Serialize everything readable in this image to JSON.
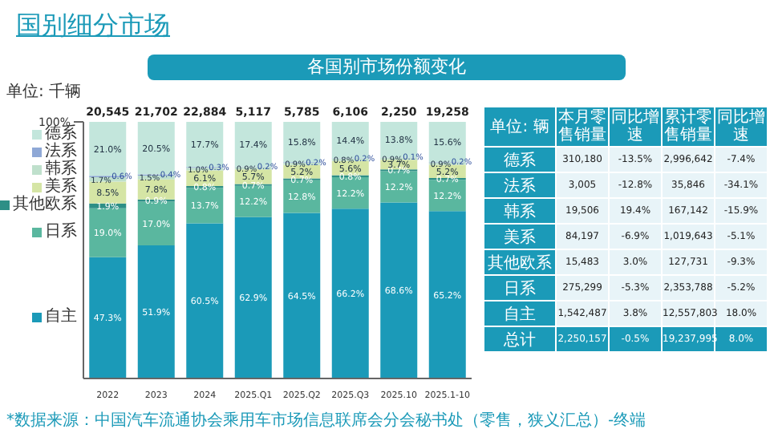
{
  "chart_data": [
    {
      "type": "bar",
      "title": "国别细分市场",
      "subtitle": "各国别市场份额变化",
      "stacked": true,
      "categories": [
        "2022",
        "2023",
        "2024",
        "2025.Q1",
        "2025.Q2",
        "2025.Q3",
        "2025.10",
        "2025.1-10"
      ],
      "legend": "left",
      "ylim": [
        0,
        100
      ],
      "yticks": [
        {
          "value": 100,
          "label": "100%"
        }
      ],
      "annotations": [
        "单位: 千辆",
        "*数据来源：中国汽车流通协会乘用车市场信息联席会分会秘书处（零售，狭义汇总）-终端",
        {
          "text": "20,545",
          "x": "2022",
          "y": 100
        },
        {
          "text": "21,702",
          "x": "2023",
          "y": 100
        },
        {
          "text": "22,884",
          "x": "2024",
          "y": 100
        },
        {
          "text": "5,117",
          "x": "2025.Q1",
          "y": 100
        },
        {
          "text": "5,785",
          "x": "2025.Q2",
          "y": 100
        },
        {
          "text": "6,106",
          "x": "2025.Q3",
          "y": 100
        },
        {
          "text": "2,250",
          "x": "2025.10",
          "y": 100
        },
        {
          "text": "19,258",
          "x": "2025.1-10",
          "y": 100
        }
      ],
      "series": [
        {
          "name": "自主",
          "color": "#1b9ab8",
          "values": [
            47.3,
            51.9,
            60.5,
            62.9,
            64.5,
            66.2,
            68.6,
            65.2
          ],
          "value_labels": [
            "47.3%",
            "51.9%",
            "60.5%",
            "62.9%",
            "64.5%",
            "66.2%",
            "68.6%",
            "65.2%"
          ]
        },
        {
          "name": "日系",
          "color": "#5ab79f",
          "values": [
            19.0,
            17.0,
            13.7,
            12.2,
            12.8,
            12.2,
            12.2,
            12.2
          ],
          "value_labels": [
            "19.0%",
            "17.0%",
            "13.7%",
            "12.2%",
            "12.8%",
            "12.2%",
            "12.2%",
            "12.2%"
          ]
        },
        {
          "name": "其他欧系",
          "color": "#2e8f86",
          "values": [
            1.9,
            0.9,
            0.8,
            0.7,
            0.7,
            0.8,
            0.7,
            0.7
          ],
          "value_labels": [
            "1.9%",
            "0.9%",
            "0.8%",
            "0.7%",
            "0.7%",
            "0.8%",
            "0.7%",
            "0.7%"
          ]
        },
        {
          "name": "美系",
          "color": "#d5e5a5",
          "values": [
            8.5,
            7.8,
            6.1,
            5.7,
            5.2,
            5.6,
            3.7,
            5.2
          ],
          "value_labels": [
            "8.5%",
            "7.8%",
            "6.1%",
            "5.7%",
            "5.2%",
            "5.6%",
            "3.7%",
            "5.2%"
          ]
        },
        {
          "name": "韩系",
          "color": "#bfe0cc",
          "values": [
            1.7,
            1.5,
            1.0,
            0.9,
            0.9,
            0.8,
            0.9,
            0.9
          ],
          "value_labels": [
            "1.7%",
            "1.5%",
            "1.0%",
            "0.9%",
            "0.9%",
            "0.8%",
            "0.9%",
            "0.9%"
          ]
        },
        {
          "name": "法系",
          "color": "#8fa8d6",
          "values": [
            0.6,
            0.4,
            0.3,
            0.2,
            0.2,
            0.2,
            0.1,
            0.2
          ],
          "value_labels": [
            "0.6%",
            "0.4%",
            "0.3%",
            "0.2%",
            "0.2%",
            "0.2%",
            "0.1%",
            "0.2%"
          ]
        },
        {
          "name": "德系",
          "color": "#c3e6dc",
          "values": [
            21.0,
            20.5,
            17.7,
            17.4,
            15.8,
            14.4,
            13.8,
            15.6
          ],
          "value_labels": [
            "21.0%",
            "20.5%",
            "17.7%",
            "17.4%",
            "15.8%",
            "14.4%",
            "13.8%",
            "15.6%"
          ]
        }
      ]
    },
    {
      "type": "other",
      "annotations": [
        "单位: 辆"
      ],
      "categories": [
        "本月零售销量",
        "同比增速",
        "累计零售销量",
        "同比增速"
      ],
      "y_categories": [
        "德系",
        "法系",
        "韩系",
        "美系",
        "其他欧系",
        "日系",
        "自主",
        "总计"
      ],
      "cell_labels": [
        [
          "310,180",
          "-13.5%",
          "2,996,642",
          "-7.4%"
        ],
        [
          "3,005",
          "-12.8%",
          "35,846",
          "-34.1%"
        ],
        [
          "19,506",
          "19.4%",
          "167,142",
          "-15.9%"
        ],
        [
          "84,197",
          "-6.9%",
          "1,019,643",
          "-5.1%"
        ],
        [
          "15,483",
          "3.0%",
          "127,731",
          "-9.3%"
        ],
        [
          "275,299",
          "-5.3%",
          "2,353,788",
          "-5.2%"
        ],
        [
          "1,542,487",
          "3.8%",
          "12,557,803",
          "18.0%"
        ],
        [
          "2,250,157",
          "-0.5%",
          "19,237,995",
          "8.0%"
        ]
      ]
    }
  ]
}
